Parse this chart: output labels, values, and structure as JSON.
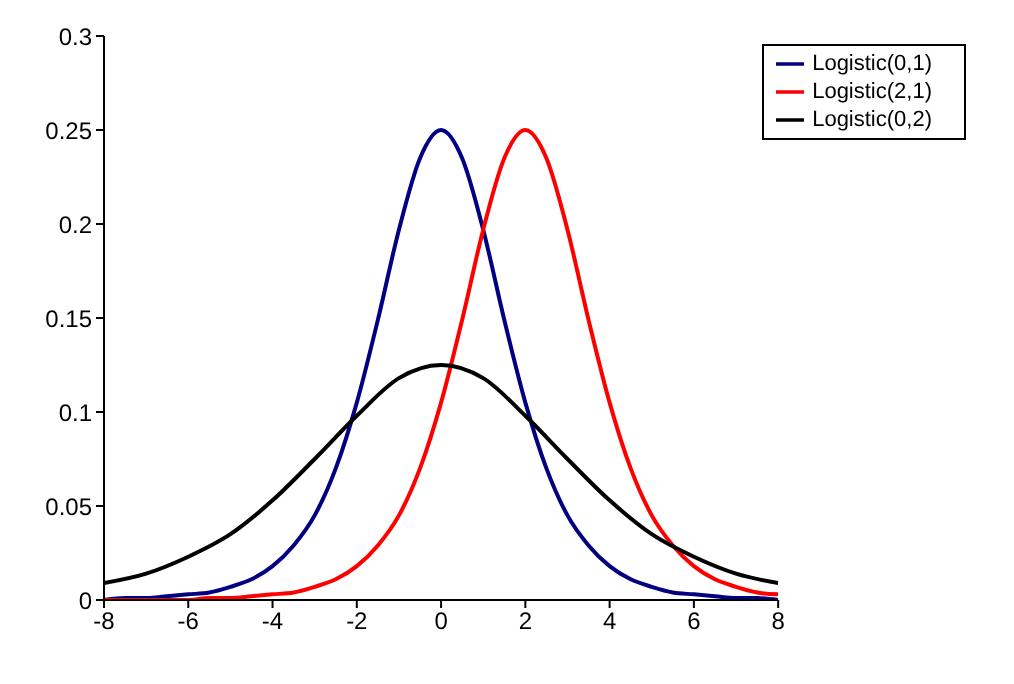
{
  "chart_data": {
    "type": "line",
    "xlim": [
      -8,
      8
    ],
    "xticks": [
      -8,
      -6,
      -4,
      -2,
      0,
      2,
      4,
      6,
      8
    ],
    "ylim": [
      0,
      0.3
    ],
    "yticks": [
      0,
      0.05,
      0.1,
      0.15,
      0.2,
      0.25,
      0.3
    ],
    "grid": false,
    "legend": "top right",
    "marker": "none",
    "line_style": "solid",
    "series": [
      {
        "name": "Logistic(0,1)",
        "color": "#000080",
        "x": [
          -8,
          -7.5,
          -7,
          -6.5,
          -6,
          -5.5,
          -5,
          -4.5,
          -4,
          -3.5,
          -3,
          -2.5,
          -2,
          -1.5,
          -1,
          -0.5,
          0,
          0.5,
          1,
          1.5,
          2,
          2.5,
          3,
          3.5,
          4,
          4.5,
          5,
          5.5,
          6,
          6.5,
          7,
          7.5,
          8
        ],
        "values": [
          0.0,
          0.001,
          0.001,
          0.002,
          0.003,
          0.004,
          0.007,
          0.011,
          0.018,
          0.029,
          0.045,
          0.07,
          0.105,
          0.149,
          0.197,
          0.235,
          0.25,
          0.235,
          0.197,
          0.149,
          0.105,
          0.07,
          0.045,
          0.029,
          0.018,
          0.011,
          0.007,
          0.004,
          0.003,
          0.002,
          0.001,
          0.001,
          0.0
        ]
      },
      {
        "name": "Logistic(2,1)",
        "color": "#ff0000",
        "x": [
          -8,
          -7.5,
          -7,
          -6.5,
          -6,
          -5.5,
          -5,
          -4.5,
          -4,
          -3.5,
          -3,
          -2.5,
          -2,
          -1.5,
          -1,
          -0.5,
          0,
          0.5,
          1,
          1.5,
          2,
          2.5,
          3,
          3.5,
          4,
          4.5,
          5,
          5.5,
          6,
          6.5,
          7,
          7.5,
          8
        ],
        "values": [
          0.0,
          0.0,
          0.0,
          0.0,
          0.0,
          0.001,
          0.001,
          0.002,
          0.003,
          0.004,
          0.007,
          0.011,
          0.018,
          0.029,
          0.045,
          0.07,
          0.105,
          0.149,
          0.197,
          0.235,
          0.25,
          0.235,
          0.197,
          0.149,
          0.105,
          0.07,
          0.045,
          0.029,
          0.018,
          0.011,
          0.007,
          0.004,
          0.003
        ]
      },
      {
        "name": "Logistic(0,2)",
        "color": "#000000",
        "x": [
          -8,
          -7,
          -6,
          -5,
          -4,
          -3,
          -2,
          -1,
          0,
          1,
          2,
          3,
          4,
          5,
          6,
          7,
          8
        ],
        "values": [
          0.009,
          0.014,
          0.023,
          0.035,
          0.053,
          0.075,
          0.098,
          0.118,
          0.125,
          0.118,
          0.098,
          0.075,
          0.053,
          0.035,
          0.023,
          0.014,
          0.009
        ]
      }
    ]
  }
}
